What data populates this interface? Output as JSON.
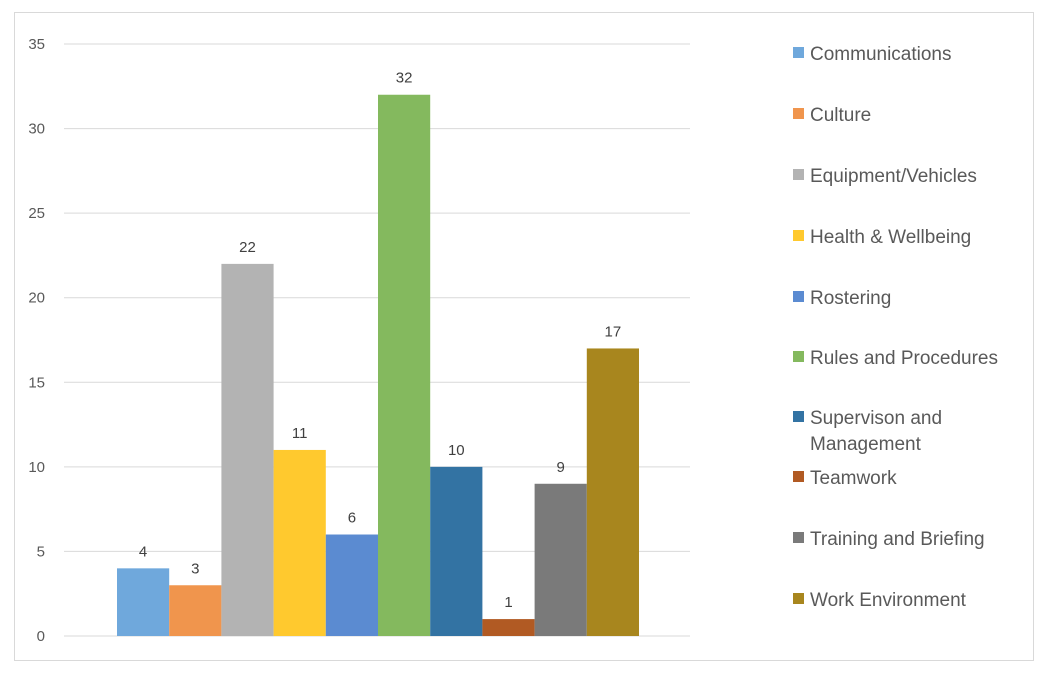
{
  "chart_data": {
    "type": "bar",
    "title": "",
    "xlabel": "",
    "ylabel": "",
    "ylim": [
      0,
      35
    ],
    "yticks": [
      0,
      5,
      10,
      15,
      20,
      25,
      30,
      35
    ],
    "grid": true,
    "legend_position": "right",
    "series": [
      {
        "name": "Communications",
        "value": 4,
        "label": "4",
        "color": "#6fa8dc"
      },
      {
        "name": "Culture",
        "value": 3,
        "label": "3",
        "color": "#f0954d"
      },
      {
        "name": "Equipment/Vehicles",
        "value": 22,
        "label": "22",
        "color": "#b3b3b3"
      },
      {
        "name": "Health & Wellbeing",
        "value": 11,
        "label": "11",
        "color": "#ffc92e"
      },
      {
        "name": "Rostering",
        "value": 6,
        "label": "6",
        "color": "#5b8bd1"
      },
      {
        "name": "Rules and Procedures",
        "value": 32,
        "label": "32",
        "color": "#84b95e"
      },
      {
        "name": "Supervison and Management",
        "value": 10,
        "label": "10",
        "color": "#3373a3"
      },
      {
        "name": "Teamwork",
        "value": 1,
        "label": "1",
        "color": "#b15a23"
      },
      {
        "name": "Training and Briefing",
        "value": 9,
        "label": "9",
        "color": "#7a7a7a"
      },
      {
        "name": "Work Environment",
        "value": 17,
        "label": "17",
        "color": "#a8861e"
      }
    ]
  }
}
